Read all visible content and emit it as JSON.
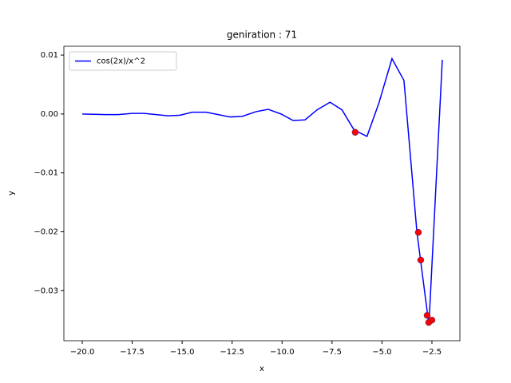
{
  "chart_data": {
    "type": "line",
    "title": "geniration : 71",
    "x_label": "x",
    "y_label": "y",
    "legend": "upper left",
    "xlim": [
      -20.92,
      -1.1
    ],
    "ylim": [
      -0.0385,
      0.0115
    ],
    "xticks": [
      {
        "value": -20,
        "label": "−20.0"
      },
      {
        "value": -17.5,
        "label": "−17.5"
      },
      {
        "value": -15,
        "label": "−15.0"
      },
      {
        "value": -12.5,
        "label": "−12.5"
      },
      {
        "value": -10,
        "label": "−10.0"
      },
      {
        "value": -7.5,
        "label": "−7.5"
      },
      {
        "value": -5,
        "label": "−5.0"
      },
      {
        "value": -2.5,
        "label": "−2.5"
      }
    ],
    "yticks": [
      {
        "value": 0.01,
        "label": "0.01"
      },
      {
        "value": 0,
        "label": "0.00"
      },
      {
        "value": -0.01,
        "label": "−0.01"
      },
      {
        "value": -0.02,
        "label": "−0.02"
      },
      {
        "value": -0.03,
        "label": "−0.03"
      }
    ],
    "series": [
      {
        "name": "cos(2x)/x^2",
        "color": "#0000ff",
        "x": [
          -20,
          -18.8,
          -18.2,
          -17.5,
          -16.9,
          -15.7,
          -15.1,
          -14.5,
          -13.8,
          -12.6,
          -12.0,
          -11.3,
          -10.7,
          -10.05,
          -9.45,
          -8.85,
          -8.25,
          -7.6,
          -7.0,
          -6.4,
          -5.75,
          -5.15,
          -4.5,
          -3.9,
          -3.25,
          -2.65,
          -1.98
        ],
        "values": [
          0.0,
          -0.0001,
          -0.0001,
          0.0001,
          0.0001,
          -0.0003,
          -0.0002,
          0.0003,
          0.0003,
          -0.0005,
          -0.0004,
          0.0004,
          0.0008,
          0.0,
          -0.0011,
          -0.001,
          0.0007,
          0.002,
          0.0007,
          -0.0027,
          -0.0038,
          0.0019,
          0.0094,
          0.0057,
          -0.0201,
          -0.0358,
          0.0092
        ]
      }
    ],
    "scatter": {
      "color": "#ff0000",
      "x": [
        -6.34,
        -3.18,
        -3.06,
        -2.74,
        -2.66,
        -2.5
      ],
      "values": [
        -0.0031,
        -0.0201,
        -0.0248,
        -0.0342,
        -0.0354,
        -0.035
      ]
    }
  }
}
